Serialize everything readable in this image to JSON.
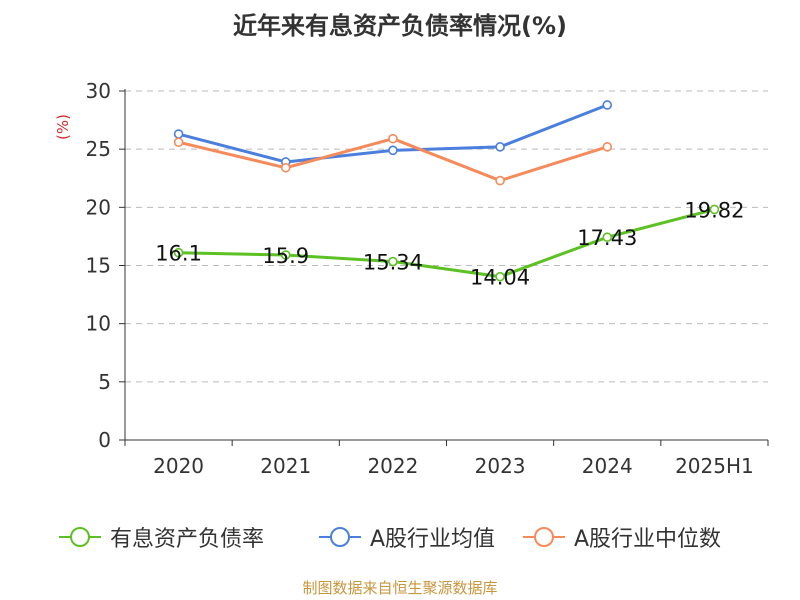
{
  "chart_data": {
    "type": "line",
    "title": "近年来有息资产负债率情况(%)",
    "ylabel": "(%)",
    "categories": [
      "2020",
      "2021",
      "2022",
      "2023",
      "2024",
      "2025H1"
    ],
    "ylim": [
      0,
      30
    ],
    "yticks": [
      "0",
      "5",
      "10",
      "15",
      "20",
      "25",
      "30"
    ],
    "grid": true,
    "legend_position": "bottom",
    "series": [
      {
        "name": "有息资产负债率",
        "color": "#5cc122",
        "values": [
          16.1,
          15.9,
          15.34,
          14.04,
          17.43,
          19.82
        ],
        "labels": [
          "16.1",
          "15.9",
          "15.34",
          "14.04",
          "17.43",
          "19.82"
        ]
      },
      {
        "name": "A股行业均值",
        "color": "#4a7fde",
        "values": [
          26.3,
          23.9,
          24.9,
          25.2,
          28.8,
          null
        ]
      },
      {
        "name": "A股行业中位数",
        "color": "#f58b5a",
        "values": [
          25.6,
          23.4,
          25.9,
          22.3,
          25.2,
          null
        ]
      }
    ]
  },
  "footer": {
    "source": "制图数据来自恒生聚源数据库"
  }
}
